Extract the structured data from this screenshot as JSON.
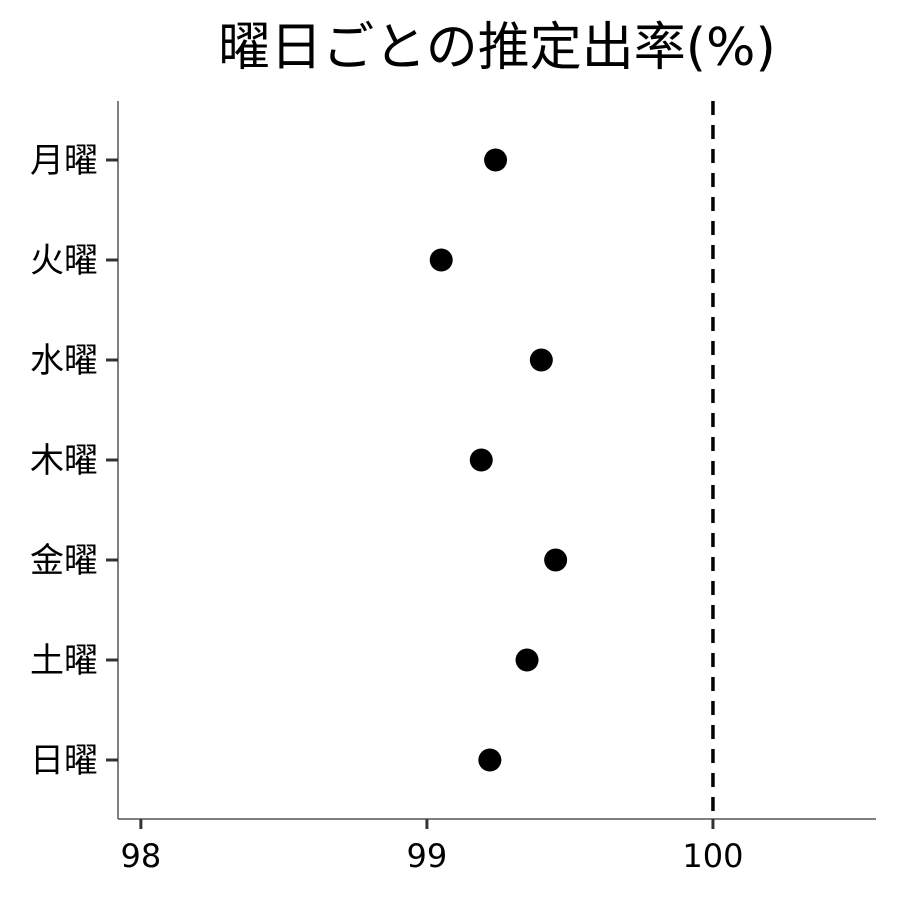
{
  "chart_data": {
    "type": "scatter",
    "title": "曜日ごとの推定出率(%)",
    "xlabel": "",
    "ylabel": "",
    "xlim": [
      97.92,
      100.57
    ],
    "x_ticks": [
      98,
      99,
      100
    ],
    "x_tick_labels": [
      "98",
      "99",
      "100"
    ],
    "categories": [
      "月曜",
      "火曜",
      "水曜",
      "木曜",
      "金曜",
      "土曜",
      "日曜"
    ],
    "values": [
      99.24,
      99.05,
      99.4,
      99.19,
      99.45,
      99.35,
      99.22
    ],
    "reference_line": {
      "x": 100,
      "style": "dashed"
    },
    "grid": false,
    "legend": "none",
    "point_color": "#000000"
  }
}
